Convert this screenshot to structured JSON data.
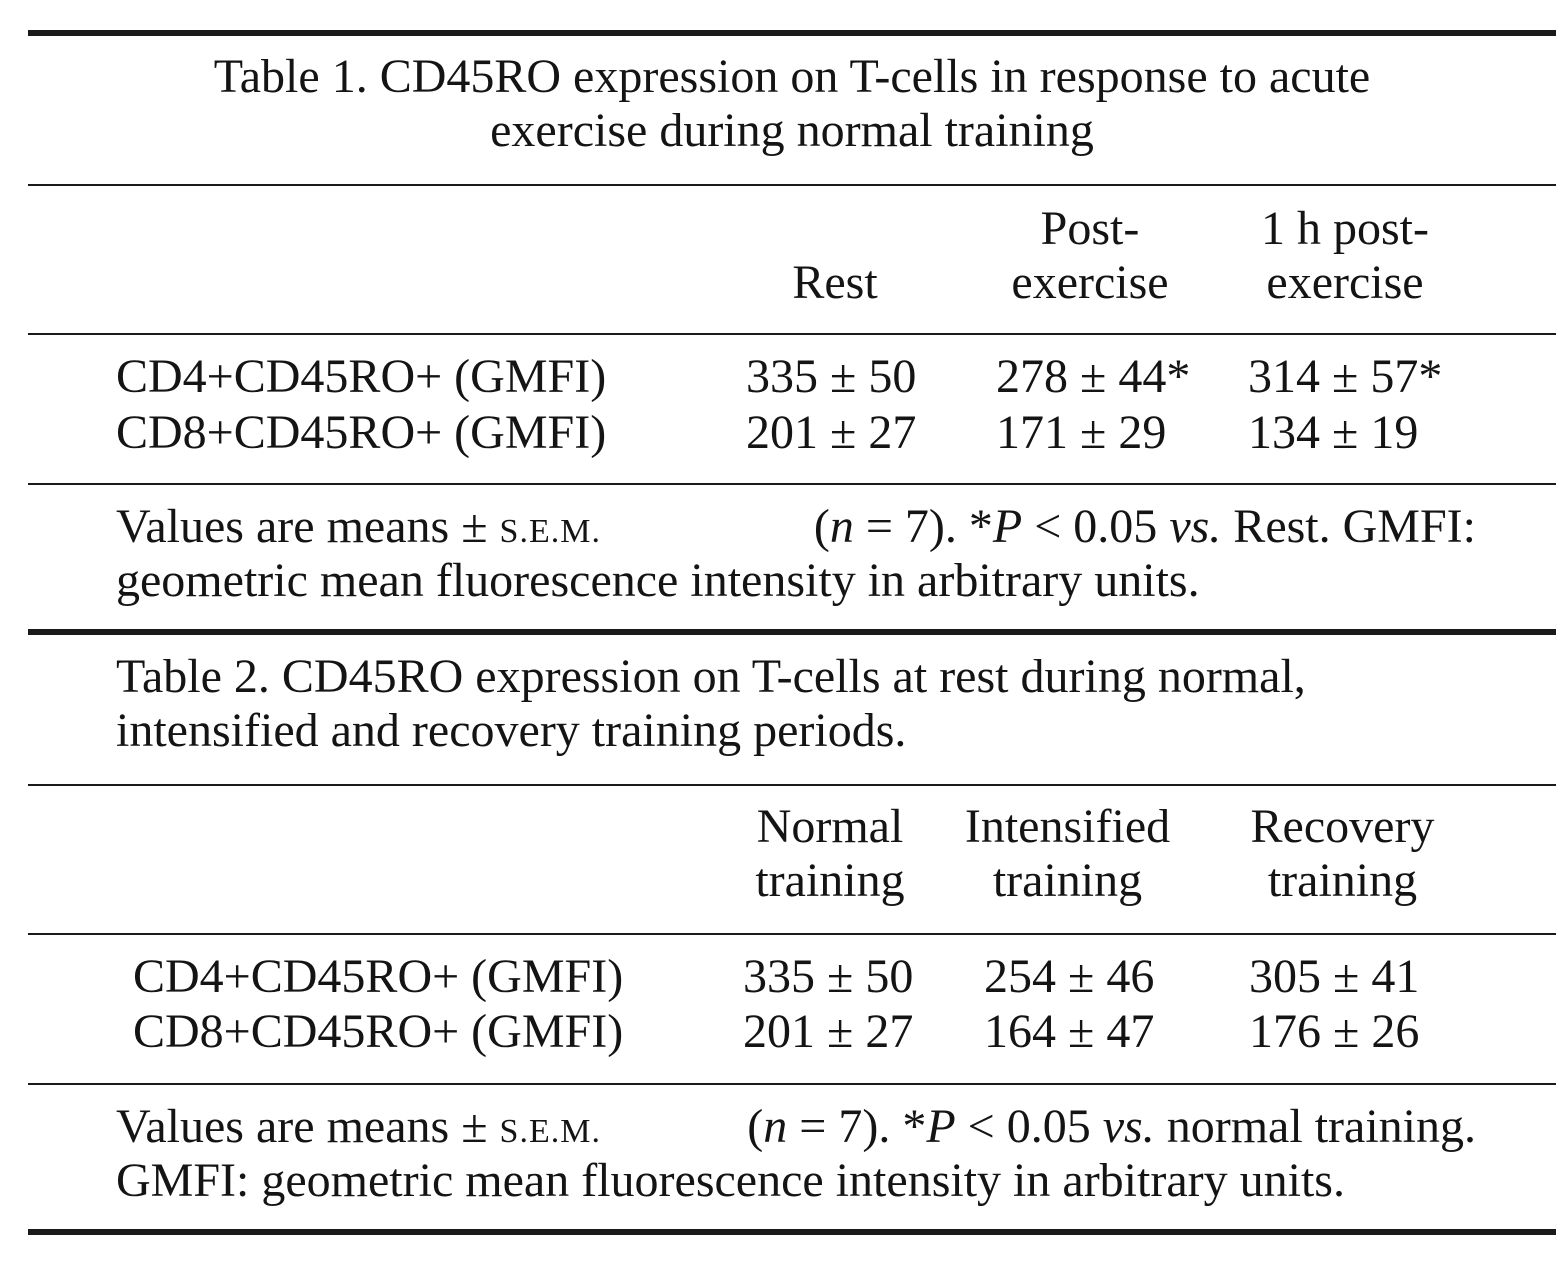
{
  "table1": {
    "caption_line1": "Table 1. CD45RO expression on T-cells in response to acute",
    "caption_line2": "exercise during normal training",
    "headers": {
      "rest": "Rest",
      "post_line1": "Post-",
      "post_line2": "exercise",
      "h1_line1": "1 h post-",
      "h1_line2": "exercise"
    },
    "rows": [
      {
        "label": "CD4+CD45RO+ (GMFI)",
        "rest": "335 ± 50",
        "post": "278 ± 44*",
        "h1": "314 ± 57*"
      },
      {
        "label": "CD8+CD45RO+ (GMFI)",
        "rest": "201 ± 27",
        "post": "171 ± 29",
        "h1": "134 ± 19"
      }
    ],
    "footnote": {
      "values_are_means": "Values  are  means ±",
      "sem": "S.E.M.",
      "n_open": "(",
      "n": "n",
      "n_eq": " = 7).  *",
      "p": "P",
      "p_lt": " < 0.05  ",
      "vs": "vs.",
      "rest_gmfi": "  Rest.  GMFI:",
      "line2": "geometric mean fluorescence intensity in arbitrary units."
    }
  },
  "table2": {
    "caption_line1": "Table 2. CD45RO expression on T-cells at rest during normal,",
    "caption_line2": "intensified and recovery training periods.",
    "headers": {
      "normal_line1": "Normal",
      "normal_line2": "training",
      "intens_line1": "Intensified",
      "intens_line2": "training",
      "recov_line1": "Recovery",
      "recov_line2": "training"
    },
    "rows": [
      {
        "label": "CD4+CD45RO+ (GMFI)",
        "normal": "335 ± 50",
        "intens": "254 ± 46",
        "recov": "305 ± 41"
      },
      {
        "label": "CD8+CD45RO+ (GMFI)",
        "normal": "201 ± 27",
        "intens": "164 ± 47",
        "recov": "176 ± 26"
      }
    ],
    "footnote": {
      "values_are_means": "Values are means ±",
      "sem": "S.E.M.",
      "n_open": "(",
      "n": "n",
      "n_eq": " = 7). *",
      "p": "P",
      "p_lt": "  < 0.05 ",
      "vs": "vs.",
      "normal_training": " normal training.",
      "line2": "GMFI: geometric mean fluorescence intensity in arbitrary units."
    }
  }
}
